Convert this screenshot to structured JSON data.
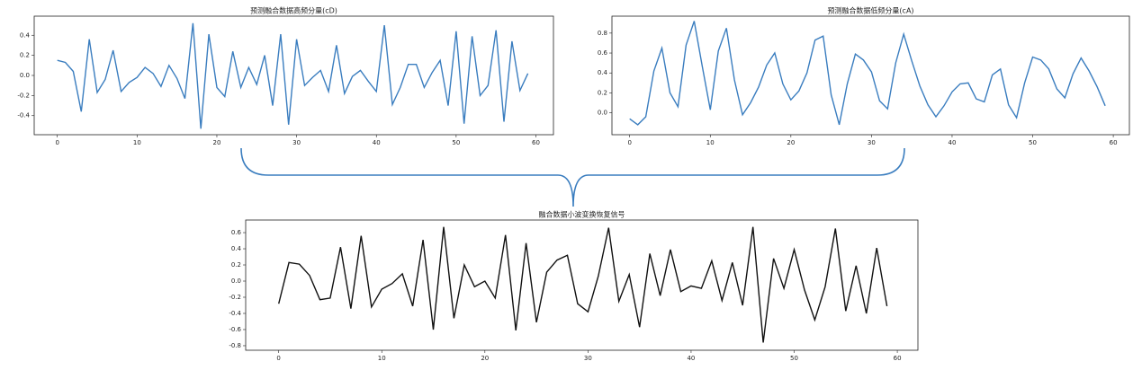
{
  "chart_data": [
    {
      "type": "line",
      "title": "预测融合数据高频分量(cD)",
      "color": "#3a7dbf",
      "x": [
        0,
        1,
        2,
        3,
        4,
        5,
        6,
        7,
        8,
        9,
        10,
        11,
        12,
        13,
        14,
        15,
        16,
        17,
        18,
        19,
        20,
        21,
        22,
        23,
        24,
        25,
        26,
        27,
        28,
        29,
        30,
        31,
        32,
        33,
        34,
        35,
        36,
        37,
        38,
        39,
        40,
        41,
        42,
        43,
        44,
        45,
        46,
        47,
        48,
        49,
        50,
        51,
        52,
        53,
        54,
        55,
        56,
        57,
        58,
        59
      ],
      "values": [
        0.15,
        0.13,
        0.04,
        -0.36,
        0.36,
        -0.17,
        -0.04,
        0.25,
        -0.16,
        -0.07,
        -0.02,
        0.08,
        0.02,
        -0.11,
        0.1,
        -0.03,
        -0.23,
        0.52,
        -0.53,
        0.41,
        -0.12,
        -0.21,
        0.24,
        -0.12,
        0.08,
        -0.09,
        0.2,
        -0.3,
        0.41,
        -0.49,
        0.36,
        -0.1,
        -0.02,
        0.05,
        -0.16,
        0.3,
        -0.18,
        -0.01,
        0.05,
        -0.06,
        -0.16,
        0.5,
        -0.29,
        -0.12,
        0.11,
        0.11,
        -0.12,
        0.03,
        0.15,
        -0.3,
        0.44,
        -0.48,
        0.39,
        -0.2,
        -0.1,
        0.45,
        -0.46,
        0.34,
        -0.15,
        0.02
      ],
      "xlim": [
        -2.9,
        62.2
      ],
      "xticks": [
        0,
        10,
        20,
        30,
        40,
        50,
        60
      ],
      "ylim": [
        -0.59,
        0.59
      ],
      "yticks": [
        0.4,
        0.2,
        {
          "value": 0,
          "label": "0.0"
        },
        -0.2,
        -0.4
      ]
    },
    {
      "type": "line",
      "title": "预测融合数据低频分量(cA)",
      "color": "#3a7dbf",
      "x": [
        0,
        1,
        2,
        3,
        4,
        5,
        6,
        7,
        8,
        9,
        10,
        11,
        12,
        13,
        14,
        15,
        16,
        17,
        18,
        19,
        20,
        21,
        22,
        23,
        24,
        25,
        26,
        27,
        28,
        29,
        30,
        31,
        32,
        33,
        34,
        35,
        36,
        37,
        38,
        39,
        40,
        41,
        42,
        43,
        44,
        45,
        46,
        47,
        48,
        49,
        50,
        51,
        52,
        53,
        54,
        55,
        56,
        57,
        58,
        59
      ],
      "values": [
        -0.06,
        -0.12,
        -0.04,
        0.42,
        0.65,
        0.2,
        0.06,
        0.68,
        0.92,
        0.47,
        0.03,
        0.62,
        0.85,
        0.33,
        -0.02,
        0.1,
        0.26,
        0.48,
        0.6,
        0.29,
        0.13,
        0.22,
        0.4,
        0.73,
        0.77,
        0.18,
        -0.12,
        0.29,
        0.59,
        0.53,
        0.41,
        0.12,
        0.04,
        0.5,
        0.79,
        0.52,
        0.27,
        0.08,
        -0.04,
        0.07,
        0.21,
        0.29,
        0.3,
        0.14,
        0.11,
        0.38,
        0.44,
        0.08,
        -0.05,
        0.3,
        0.56,
        0.53,
        0.44,
        0.24,
        0.15,
        0.39,
        0.55,
        0.42,
        0.26,
        0.07
      ],
      "xlim": [
        -2.2,
        62.0
      ],
      "xticks": [
        0,
        10,
        20,
        30,
        40,
        50,
        60
      ],
      "ylim": [
        -0.22,
        0.97
      ],
      "yticks": [
        0.8,
        0.6,
        0.4,
        0.2,
        {
          "value": 0,
          "label": "0.0"
        }
      ]
    },
    {
      "type": "line",
      "title": "融合数据小波变换恢复信号",
      "color": "#111111",
      "x": [
        0,
        1,
        2,
        3,
        4,
        5,
        6,
        7,
        8,
        9,
        10,
        11,
        12,
        13,
        14,
        15,
        16,
        17,
        18,
        19,
        20,
        21,
        22,
        23,
        24,
        25,
        26,
        27,
        28,
        29,
        30,
        31,
        32,
        33,
        34,
        35,
        36,
        37,
        38,
        39,
        40,
        41,
        42,
        43,
        44,
        45,
        46,
        47,
        48,
        49,
        50,
        51,
        52,
        53,
        54,
        55,
        56,
        57,
        58,
        59
      ],
      "values": [
        -0.28,
        0.23,
        0.21,
        0.07,
        -0.23,
        -0.21,
        0.42,
        -0.34,
        0.56,
        -0.32,
        -0.1,
        -0.03,
        0.09,
        -0.31,
        0.51,
        -0.6,
        0.67,
        -0.46,
        0.2,
        -0.07,
        0,
        -0.21,
        0.57,
        -0.61,
        0.47,
        -0.51,
        0.11,
        0.26,
        0.32,
        -0.28,
        -0.38,
        0.06,
        0.66,
        -0.25,
        0.08,
        -0.57,
        0.34,
        -0.18,
        0.39,
        -0.13,
        -0.06,
        -0.09,
        0.25,
        -0.24,
        0.23,
        -0.3,
        0.67,
        -0.76,
        0.28,
        -0.09,
        0.39,
        -0.11,
        -0.48,
        -0.07,
        0.65,
        -0.37,
        0.19,
        -0.4,
        0.41,
        -0.31
      ],
      "xlim": [
        -3.2,
        62.0
      ],
      "xticks": [
        0,
        10,
        20,
        30,
        40,
        50,
        60
      ],
      "ylim": [
        -0.856,
        0.756
      ],
      "yticks": [
        0.6,
        0.4,
        0.2,
        {
          "value": 0,
          "label": "0.0"
        },
        -0.2,
        -0.4,
        -0.6,
        -0.8
      ]
    }
  ]
}
